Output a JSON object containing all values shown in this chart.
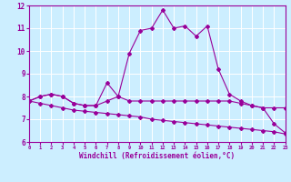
{
  "x": [
    0,
    1,
    2,
    3,
    4,
    5,
    6,
    7,
    8,
    9,
    10,
    11,
    12,
    13,
    14,
    15,
    16,
    17,
    18,
    19,
    20,
    21,
    22,
    23
  ],
  "line1": [
    7.8,
    8.0,
    8.1,
    8.0,
    7.7,
    7.6,
    7.6,
    8.6,
    8.0,
    7.8,
    7.8,
    7.8,
    7.8,
    7.8,
    7.8,
    7.8,
    7.8,
    7.8,
    7.8,
    7.7,
    7.6,
    7.5,
    7.5,
    7.5
  ],
  "line2": [
    7.8,
    8.0,
    8.1,
    8.0,
    7.7,
    7.6,
    7.6,
    7.8,
    8.0,
    9.9,
    10.9,
    11.0,
    11.8,
    11.0,
    11.1,
    10.65,
    11.1,
    9.2,
    8.1,
    7.8,
    7.6,
    7.5,
    6.8,
    6.4
  ],
  "line3": [
    7.8,
    7.7,
    7.6,
    7.5,
    7.4,
    7.35,
    7.3,
    7.25,
    7.2,
    7.15,
    7.1,
    7.0,
    6.95,
    6.9,
    6.85,
    6.8,
    6.75,
    6.7,
    6.65,
    6.6,
    6.55,
    6.5,
    6.45,
    6.35
  ],
  "line_color": "#990099",
  "bg_color": "#cceeff",
  "grid_color": "#aaddcc",
  "xlabel": "Windchill (Refroidissement éolien,°C)",
  "ylim": [
    6,
    12
  ],
  "xlim": [
    0,
    23
  ],
  "yticks": [
    6,
    7,
    8,
    9,
    10,
    11,
    12
  ],
  "xticks": [
    0,
    1,
    2,
    3,
    4,
    5,
    6,
    7,
    8,
    9,
    10,
    11,
    12,
    13,
    14,
    15,
    16,
    17,
    18,
    19,
    20,
    21,
    22,
    23
  ]
}
